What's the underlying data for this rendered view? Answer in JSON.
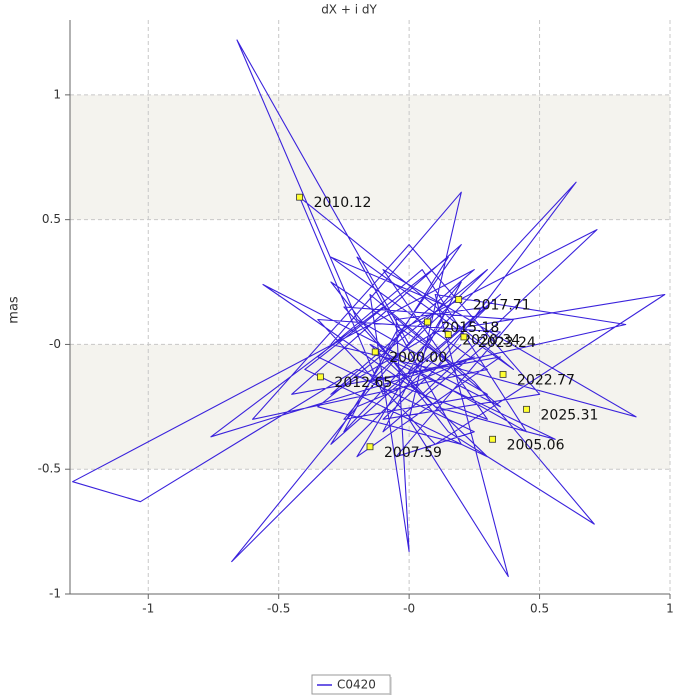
{
  "chart_data": {
    "type": "line",
    "title": "dX + i dY",
    "ylabel": "mas",
    "xlim": [
      -1.3,
      1.0
    ],
    "ylim": [
      -1.0,
      1.3
    ],
    "xticks": [
      -1,
      -0.5,
      {
        "value": 0,
        "label": "-0"
      },
      0.5,
      1
    ],
    "yticks": [
      -1,
      -0.5,
      {
        "value": 0,
        "label": "-0"
      },
      0.5,
      1
    ],
    "grid": true,
    "alternating_bands": true,
    "legend": "bottom",
    "series": [
      {
        "name": "C0420",
        "color": "#3a22dc",
        "x": [
          0,
          -0.66,
          -0.2,
          0.3,
          -0.25,
          0.2,
          -0.1,
          0.35,
          -0.35,
          0.1,
          0.98,
          0.1,
          -0.3,
          0.25,
          -1.29,
          -1.03,
          -0.2,
          0.3,
          -0.1,
          0.87,
          0.2,
          -0.3,
          0.15,
          0.71,
          0.25,
          -0.15,
          0,
          -0.05,
          0.3,
          -0.68,
          -0.2,
          0.25,
          -0.76,
          -0.1,
          0.35,
          -0.56,
          0.05,
          0.72,
          -0.05,
          -0.25,
          0.64,
          0.1,
          -0.3,
          0.2,
          0,
          0.38,
          0.1,
          0.83,
          -0.15,
          0.3,
          -0.35,
          0.2,
          -0.2,
          0.4,
          -0.42,
          -0.1,
          0.35,
          -0.3,
          0.15,
          -0.4,
          0.3,
          -0.15,
          0.45,
          0.05,
          -0.35,
          0.25,
          -0.05,
          0.4,
          -0.25,
          0.1,
          0.56,
          -0.1,
          0.2,
          -0.45,
          0.35,
          -0.2,
          0.15,
          -0.3,
          0.3,
          -0.6,
          0,
          0.5,
          -0.1,
          0.2
        ],
        "values": [
          0,
          1.22,
          0.1,
          -0.2,
          -0.3,
          0.25,
          -0.35,
          0.05,
          0.1,
          -0.4,
          0.2,
          0.05,
          -0.2,
          0.3,
          -0.55,
          -0.63,
          -0.1,
          -0.3,
          0.3,
          -0.29,
          -0.1,
          0.25,
          -0.35,
          -0.72,
          -0.15,
          0.2,
          -0.83,
          0.1,
          0.15,
          -0.87,
          -0.25,
          -0.05,
          -0.37,
          0.15,
          -0.25,
          0.24,
          -0.2,
          0.46,
          0.05,
          -0.35,
          0.65,
          -0.1,
          0,
          0.61,
          -0.3,
          -0.93,
          0.2,
          0.08,
          -0.15,
          0.3,
          -0.25,
          -0.4,
          0.35,
          -0.1,
          0.59,
          -0.2,
          0.2,
          -0.4,
          0.35,
          -0.1,
          -0.45,
          0,
          -0.35,
          0.3,
          -0.05,
          -0.35,
          -0.45,
          0.1,
          0.15,
          -0.25,
          -0.38,
          -0.05,
          0.4,
          -0.2,
          -0.05,
          -0.45,
          0.15,
          0.35,
          -0.1,
          -0.3,
          0.4,
          -0.2,
          -0.3,
          0
        ]
      }
    ],
    "annotations": [
      {
        "label": "2010.12",
        "x": -0.42,
        "y": 0.59
      },
      {
        "label": "2017.71",
        "x": 0.19,
        "y": 0.18
      },
      {
        "label": "2015.18",
        "x": 0.07,
        "y": 0.09
      },
      {
        "label": "2020.34",
        "x": 0.15,
        "y": 0.04
      },
      {
        "label": "2023.24",
        "x": 0.21,
        "y": 0.03
      },
      {
        "label": "2000.00",
        "x": -0.13,
        "y": -0.03
      },
      {
        "label": "2012.65",
        "x": -0.34,
        "y": -0.13
      },
      {
        "label": "2022.77",
        "x": 0.36,
        "y": -0.12
      },
      {
        "label": "2025.31",
        "x": 0.45,
        "y": -0.26
      },
      {
        "label": "2005.06",
        "x": 0.32,
        "y": -0.38
      },
      {
        "label": "2007.59",
        "x": -0.15,
        "y": -0.41
      }
    ]
  }
}
